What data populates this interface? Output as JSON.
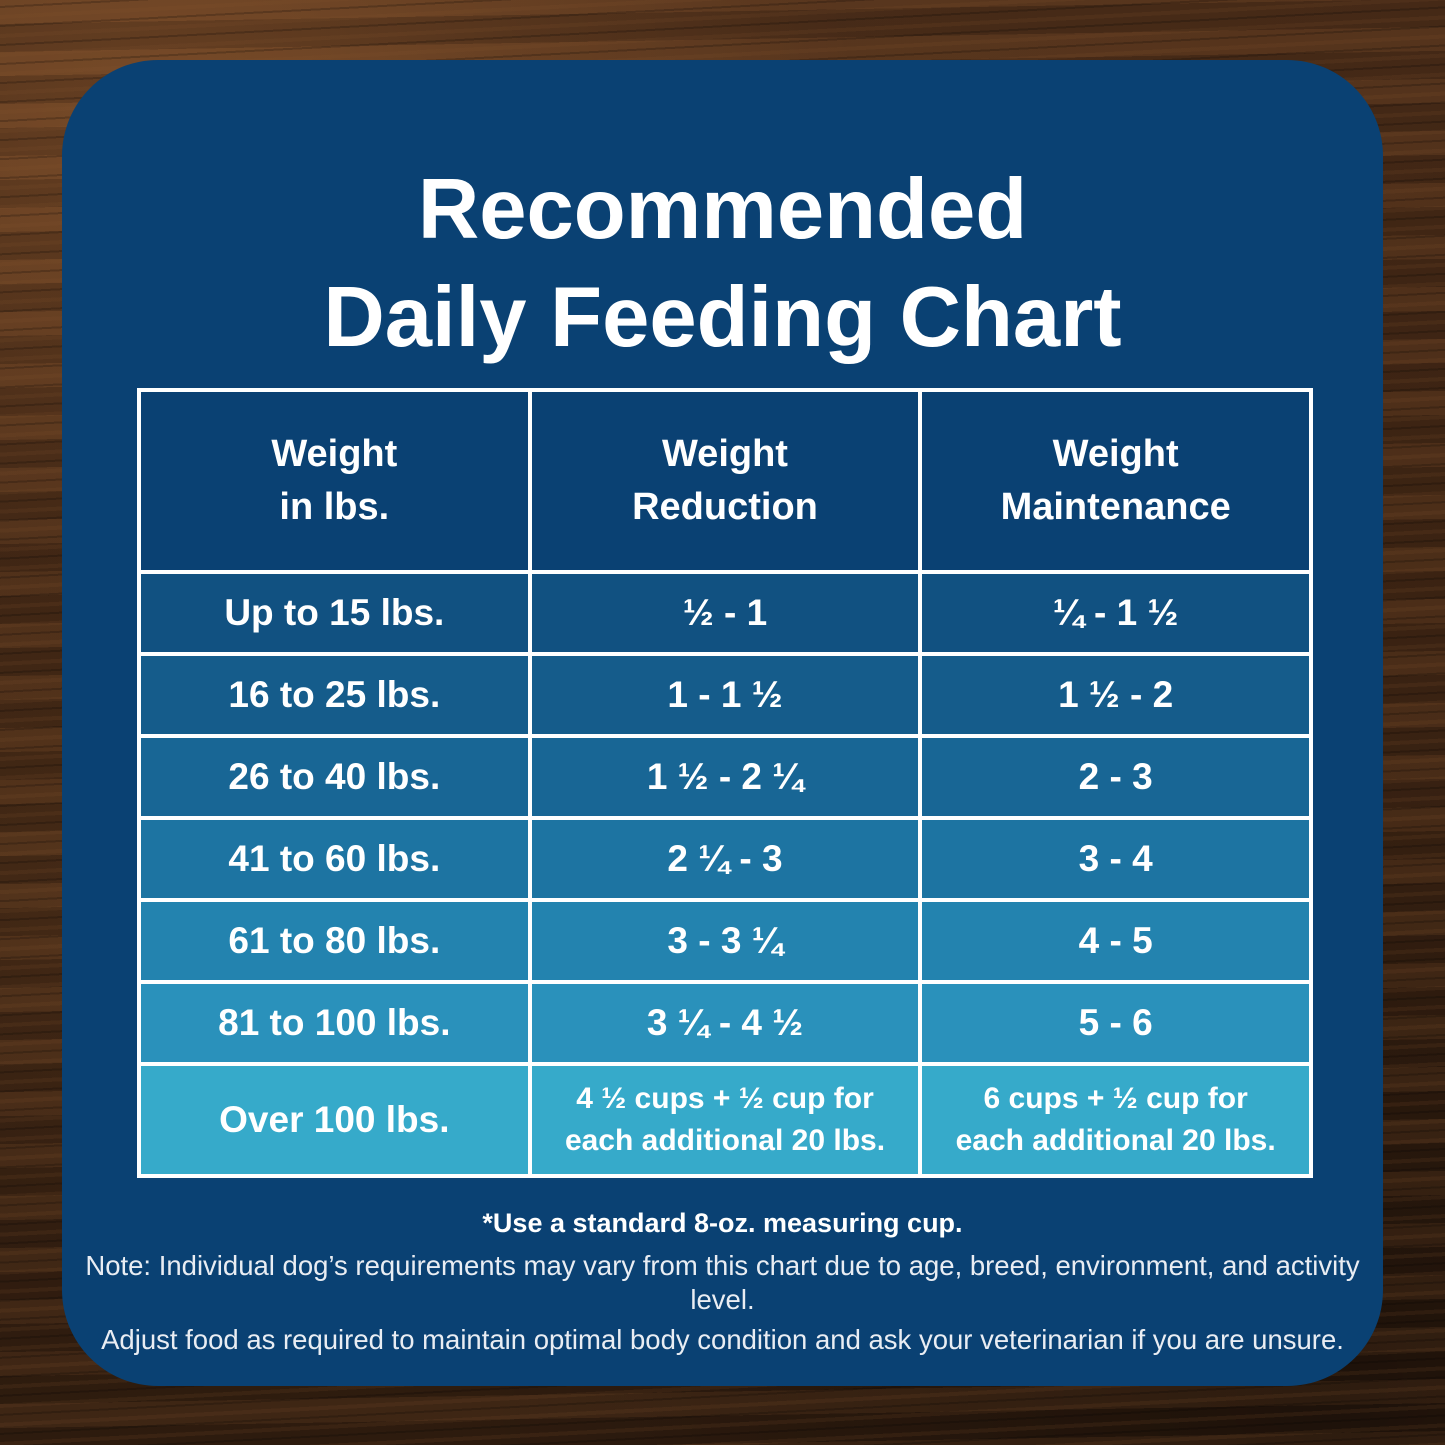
{
  "title": "Recommended\nDaily Feeding Chart",
  "chart_data": {
    "type": "table",
    "title": "Recommended Daily Feeding Chart",
    "columns": [
      "Weight\nin lbs.",
      "Weight\nReduction",
      "Weight\nMaintenance"
    ],
    "rows": [
      {
        "weight": "Up to 15 lbs.",
        "reduction": "½ - 1",
        "maintenance": "¼ - 1 ½",
        "color": "#115181"
      },
      {
        "weight": "16 to 25 lbs.",
        "reduction": "1 - 1 ½",
        "maintenance": "1 ½ - 2",
        "color": "#155C8B"
      },
      {
        "weight": "26 to 40 lbs.",
        "reduction": "1 ½ - 2 ¼",
        "maintenance": "2 - 3",
        "color": "#186695"
      },
      {
        "weight": "41 to 60 lbs.",
        "reduction": "2 ¼ - 3",
        "maintenance": "3 - 4",
        "color": "#1D74A2"
      },
      {
        "weight": "61 to 80 lbs.",
        "reduction": "3 - 3 ¼",
        "maintenance": "4 - 5",
        "color": "#2383AF"
      },
      {
        "weight": "81 to 100 lbs.",
        "reduction": "3 ¼ - 4 ½",
        "maintenance": "5 - 6",
        "color": "#2A91BB"
      },
      {
        "weight": "Over 100 lbs.",
        "reduction": "4 ½ cups  + ½ cup for\neach additional 20 lbs.",
        "maintenance": "6 cups  + ½ cup for\neach additional 20 lbs.",
        "color": "#36AACA"
      }
    ]
  },
  "footnotes": [
    "*Use a standard 8-oz. measuring cup.",
    "Note: Individual dog’s requirements may vary from this chart due to age, breed, environment, and activity level.",
    "Adjust food as required to maintain optimal body condition and ask your veterinarian if you are unsure."
  ],
  "colors": {
    "card_background": "#0A4173",
    "table_border": "#FFFFFF",
    "text": "#FFFFFF"
  }
}
